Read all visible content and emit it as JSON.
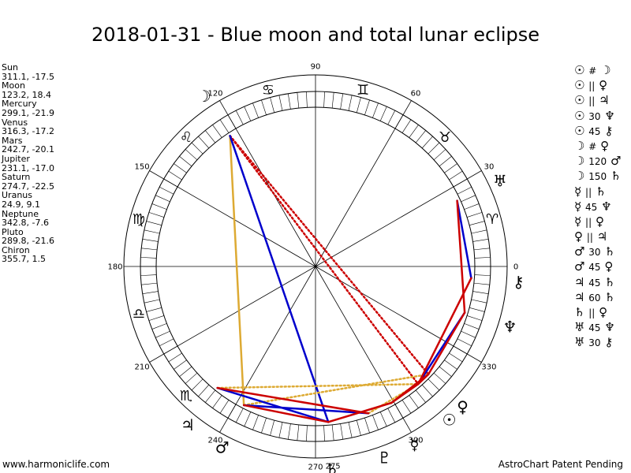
{
  "title": "2018-01-31 - Blue moon and total lunar eclipse",
  "planets": [
    {
      "key": "sun",
      "name": "Sun",
      "coords": "311.1, -17.5",
      "lon": 311.1,
      "glyph": "☉"
    },
    {
      "key": "moon",
      "name": "Moon",
      "coords": "123.2, 18.4",
      "lon": 123.2,
      "glyph": "☽"
    },
    {
      "key": "mercury",
      "name": "Mercury",
      "coords": "299.1, -21.9",
      "lon": 299.1,
      "glyph": "☿"
    },
    {
      "key": "venus",
      "name": "Venus",
      "coords": "316.3, -17.2",
      "lon": 316.3,
      "glyph": "♀"
    },
    {
      "key": "mars",
      "name": "Mars",
      "coords": "242.7, -20.1",
      "lon": 242.7,
      "glyph": "♂"
    },
    {
      "key": "jupiter",
      "name": "Jupiter",
      "coords": "231.1, -17.0",
      "lon": 231.1,
      "glyph": "♃"
    },
    {
      "key": "saturn",
      "name": "Saturn",
      "coords": "274.7, -22.5",
      "lon": 274.7,
      "glyph": "♄"
    },
    {
      "key": "uranus",
      "name": "Uranus",
      "coords": "24.9, 9.1",
      "lon": 24.9,
      "glyph": "♅"
    },
    {
      "key": "neptune",
      "name": "Neptune",
      "coords": "342.8, -7.6",
      "lon": 342.8,
      "glyph": "♆"
    },
    {
      "key": "pluto",
      "name": "Pluto",
      "coords": "289.8, -21.6",
      "lon": 289.8,
      "glyph": "♇"
    },
    {
      "key": "chiron",
      "name": "Chiron",
      "coords": "355.7, 1.5",
      "lon": 355.7,
      "glyph": "⚷"
    }
  ],
  "aspects": [
    {
      "a": "☉",
      "sym": "#",
      "b": "☽"
    },
    {
      "a": "☉",
      "sym": "||",
      "b": "♀"
    },
    {
      "a": "☉",
      "sym": "||",
      "b": "♃"
    },
    {
      "a": "☉",
      "sym": "30",
      "b": "♆"
    },
    {
      "a": "☉",
      "sym": "45",
      "b": "⚷"
    },
    {
      "a": "☽",
      "sym": "#",
      "b": "♀"
    },
    {
      "a": "☽",
      "sym": "120",
      "b": "♂"
    },
    {
      "a": "☽",
      "sym": "150",
      "b": "♄"
    },
    {
      "a": "☿",
      "sym": "||",
      "b": "♄"
    },
    {
      "a": "☿",
      "sym": "45",
      "b": "♆"
    },
    {
      "a": "☿",
      "sym": "||",
      "b": "♀"
    },
    {
      "a": "♀",
      "sym": "||",
      "b": "♃"
    },
    {
      "a": "♂",
      "sym": "30",
      "b": "♄"
    },
    {
      "a": "♂",
      "sym": "45",
      "b": "♀"
    },
    {
      "a": "♃",
      "sym": "45",
      "b": "♄"
    },
    {
      "a": "♃",
      "sym": "60",
      "b": "♄"
    },
    {
      "a": "♄",
      "sym": "||",
      "b": "♀"
    },
    {
      "a": "♅",
      "sym": "45",
      "b": "♆"
    },
    {
      "a": "♅",
      "sym": "30",
      "b": "⚷"
    }
  ],
  "degree_labels": [
    {
      "deg": 0,
      "text": "0"
    },
    {
      "deg": 30,
      "text": "30"
    },
    {
      "deg": 60,
      "text": "60"
    },
    {
      "deg": 90,
      "text": "90"
    },
    {
      "deg": 120,
      "text": "120"
    },
    {
      "deg": 150,
      "text": "150"
    },
    {
      "deg": 180,
      "text": "180"
    },
    {
      "deg": 210,
      "text": "210"
    },
    {
      "deg": 240,
      "text": "240"
    },
    {
      "deg": 270,
      "text": "270"
    },
    {
      "deg": 275,
      "text": "275"
    },
    {
      "deg": 300,
      "text": "300"
    },
    {
      "deg": 330,
      "text": "330"
    }
  ],
  "signs": [
    {
      "deg": 15,
      "glyph": "♈"
    },
    {
      "deg": 45,
      "glyph": "♉"
    },
    {
      "deg": 75,
      "glyph": "♊"
    },
    {
      "deg": 105,
      "glyph": "♋"
    },
    {
      "deg": 135,
      "glyph": "♌"
    },
    {
      "deg": 165,
      "glyph": "♍"
    },
    {
      "deg": 195,
      "glyph": "♎"
    },
    {
      "deg": 225,
      "glyph": "♏"
    }
  ],
  "aspect_lines": [
    {
      "from": "moon",
      "to": "sun",
      "color": "#cc0000",
      "style": "dotted"
    },
    {
      "from": "moon",
      "to": "venus",
      "color": "#cc0000",
      "style": "dotted"
    },
    {
      "from": "moon",
      "to": "mars",
      "color": "#ddaa33",
      "style": "solid"
    },
    {
      "from": "moon",
      "to": "saturn",
      "color": "#0000cc",
      "style": "solid"
    },
    {
      "from": "jupiter",
      "to": "sun",
      "color": "#ddaa33",
      "style": "dotted"
    },
    {
      "from": "mars",
      "to": "venus",
      "color": "#ddaa33",
      "style": "dotted"
    },
    {
      "from": "pluto",
      "to": "sun",
      "color": "#ddaa33",
      "style": "dotted"
    },
    {
      "from": "jupiter",
      "to": "saturn",
      "color": "#0000cc",
      "style": "solid"
    },
    {
      "from": "mars",
      "to": "pluto",
      "color": "#0000cc",
      "style": "solid"
    },
    {
      "from": "uranus",
      "to": "chiron",
      "color": "#0000cc",
      "style": "solid"
    },
    {
      "from": "sun",
      "to": "neptune",
      "color": "#0000cc",
      "style": "solid"
    },
    {
      "from": "mars",
      "to": "saturn",
      "color": "#cc0000",
      "style": "solid"
    },
    {
      "from": "jupiter",
      "to": "pluto",
      "color": "#cc0000",
      "style": "solid"
    },
    {
      "from": "saturn",
      "to": "mercury",
      "color": "#cc0000",
      "style": "solid"
    },
    {
      "from": "mercury",
      "to": "venus",
      "color": "#cc0000",
      "style": "solid"
    },
    {
      "from": "mercury",
      "to": "sun",
      "color": "#cc0000",
      "style": "solid"
    },
    {
      "from": "sun",
      "to": "venus",
      "color": "#cc0000",
      "style": "solid"
    },
    {
      "from": "venus",
      "to": "neptune",
      "color": "#cc0000",
      "style": "solid"
    },
    {
      "from": "sun",
      "to": "chiron",
      "color": "#cc0000",
      "style": "solid"
    },
    {
      "from": "uranus",
      "to": "neptune",
      "color": "#cc0000",
      "style": "solid"
    }
  ],
  "footer": {
    "left": "www.harmoniclife.com",
    "right": "AstroChart Patent Pending"
  }
}
